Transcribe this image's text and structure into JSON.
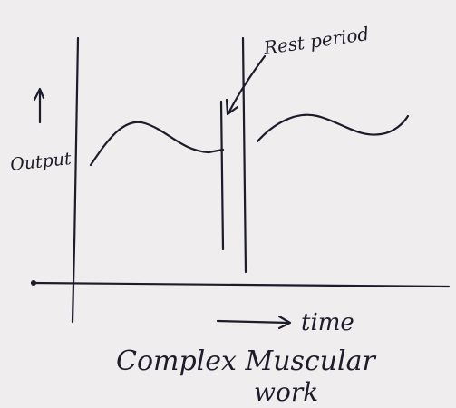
{
  "labels": {
    "y_axis": "Output",
    "rest": "Rest period",
    "x_axis": "time",
    "caption": [
      "Complex Muscular",
      "work"
    ]
  }
}
